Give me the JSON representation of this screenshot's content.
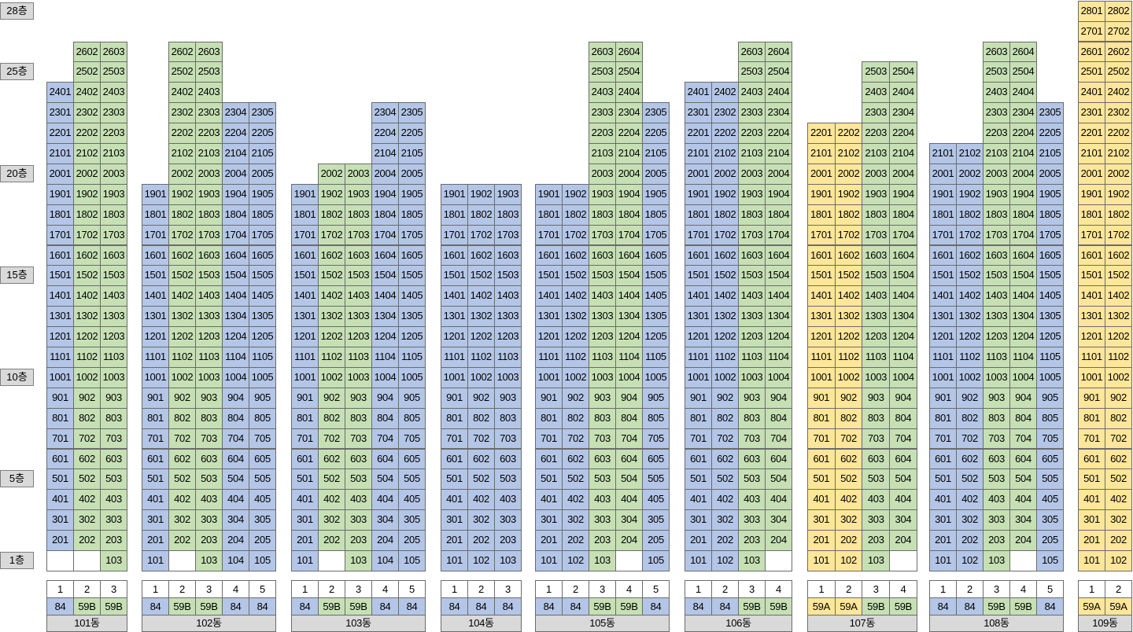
{
  "floor_labels": [
    {
      "floor": 28,
      "text": "28층"
    },
    {
      "floor": 25,
      "text": "25층"
    },
    {
      "floor": 20,
      "text": "20층"
    },
    {
      "floor": 15,
      "text": "15층"
    },
    {
      "floor": 10,
      "text": "10층"
    },
    {
      "floor": 5,
      "text": "5층"
    },
    {
      "floor": 1,
      "text": "1층"
    }
  ],
  "colors": {
    "84": "#b4c6e7",
    "59B": "#c6e0b4",
    "59A": "#ffe699",
    "label_gray": "#d9d9d9",
    "border": "#6b6b6b"
  },
  "buildings": [
    {
      "name": "101동",
      "lines": [
        {
          "no": "1",
          "type": "84",
          "min": 2,
          "max": 24
        },
        {
          "no": "2",
          "type": "59B",
          "min": 2,
          "max": 26
        },
        {
          "no": "3",
          "type": "59B",
          "min": 1,
          "max": 26
        }
      ]
    },
    {
      "name": "102동",
      "lines": [
        {
          "no": "1",
          "type": "84",
          "min": 1,
          "max": 19
        },
        {
          "no": "2",
          "type": "59B",
          "min": 2,
          "max": 26
        },
        {
          "no": "3",
          "type": "59B",
          "min": 1,
          "max": 26
        },
        {
          "no": "4",
          "type": "84",
          "min": 1,
          "max": 23
        },
        {
          "no": "5",
          "type": "84",
          "min": 1,
          "max": 23
        }
      ]
    },
    {
      "name": "103동",
      "lines": [
        {
          "no": "1",
          "type": "84",
          "min": 1,
          "max": 19
        },
        {
          "no": "2",
          "type": "59B",
          "min": 2,
          "max": 20
        },
        {
          "no": "3",
          "type": "59B",
          "min": 1,
          "max": 20
        },
        {
          "no": "4",
          "type": "84",
          "min": 1,
          "max": 23
        },
        {
          "no": "5",
          "type": "84",
          "min": 1,
          "max": 23
        }
      ]
    },
    {
      "name": "104동",
      "lines": [
        {
          "no": "1",
          "type": "84",
          "min": 1,
          "max": 19
        },
        {
          "no": "2",
          "type": "84",
          "min": 1,
          "max": 19
        },
        {
          "no": "3",
          "type": "84",
          "min": 1,
          "max": 19
        }
      ]
    },
    {
      "name": "105동",
      "lines": [
        {
          "no": "1",
          "type": "84",
          "min": 1,
          "max": 19
        },
        {
          "no": "2",
          "type": "84",
          "min": 1,
          "max": 19
        },
        {
          "no": "3",
          "type": "59B",
          "min": 1,
          "max": 26
        },
        {
          "no": "4",
          "type": "59B",
          "min": 2,
          "max": 26
        },
        {
          "no": "5",
          "type": "84",
          "min": 1,
          "max": 23
        }
      ]
    },
    {
      "name": "106동",
      "lines": [
        {
          "no": "1",
          "type": "84",
          "min": 1,
          "max": 24
        },
        {
          "no": "2",
          "type": "84",
          "min": 1,
          "max": 24
        },
        {
          "no": "3",
          "type": "59B",
          "min": 1,
          "max": 26
        },
        {
          "no": "4",
          "type": "59B",
          "min": 2,
          "max": 26
        }
      ]
    },
    {
      "name": "107동",
      "lines": [
        {
          "no": "1",
          "type": "59A",
          "min": 1,
          "max": 22
        },
        {
          "no": "2",
          "type": "59A",
          "min": 1,
          "max": 22
        },
        {
          "no": "3",
          "type": "59B",
          "min": 1,
          "max": 25
        },
        {
          "no": "4",
          "type": "59B",
          "min": 2,
          "max": 25
        }
      ]
    },
    {
      "name": "108동",
      "lines": [
        {
          "no": "1",
          "type": "84",
          "min": 1,
          "max": 21
        },
        {
          "no": "2",
          "type": "84",
          "min": 1,
          "max": 21
        },
        {
          "no": "3",
          "type": "59B",
          "min": 1,
          "max": 26
        },
        {
          "no": "4",
          "type": "59B",
          "min": 2,
          "max": 26
        },
        {
          "no": "5",
          "type": "84",
          "min": 1,
          "max": 23
        }
      ]
    },
    {
      "name": "109동",
      "lines": [
        {
          "no": "1",
          "type": "59A",
          "min": 1,
          "max": 28
        },
        {
          "no": "2",
          "type": "59A",
          "min": 1,
          "max": 28
        }
      ]
    }
  ]
}
